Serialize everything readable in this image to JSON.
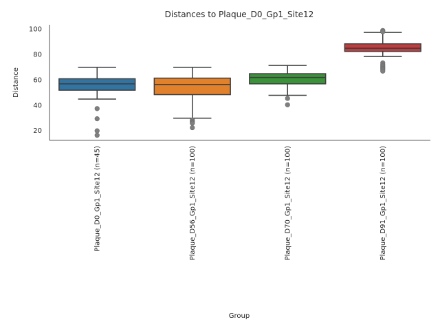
{
  "chart_data": {
    "type": "box",
    "title": "Distances to Plaque_D0_Gp1_Site12",
    "xlabel": "Group",
    "ylabel": "Distance",
    "ylim": [
      12,
      103
    ],
    "yticks": [
      20,
      40,
      60,
      80,
      100
    ],
    "grid": false,
    "categories": [
      "Plaque_D0_Gp1_Site12 (n=45)",
      "Plaque_D56_Gp1_Site12 (n=100)",
      "Plaque_D70_Gp1_Site12 (n=100)",
      "Plaque_D91_Gp1_Site12 (n=100)"
    ],
    "colors": [
      "#3274a1",
      "#e1812c",
      "#3a923a",
      "#c03d3e"
    ],
    "boxes": [
      {
        "whisker_low": 44.5,
        "q1": 51.5,
        "median": 56.5,
        "q3": 60.5,
        "whisker_high": 69.5,
        "outliers": [
          37,
          29,
          19.5,
          16
        ]
      },
      {
        "whisker_low": 29.5,
        "q1": 48,
        "median": 56,
        "q3": 61,
        "whisker_high": 69.5,
        "outliers": [
          28,
          27,
          26,
          25.5,
          22
        ]
      },
      {
        "whisker_low": 47.5,
        "q1": 56.5,
        "median": 61.5,
        "q3": 64.5,
        "whisker_high": 71,
        "outliers": [
          45,
          40
        ]
      },
      {
        "whisker_low": 78,
        "q1": 82,
        "median": 84.5,
        "q3": 88,
        "whisker_high": 97,
        "outliers": [
          98.5,
          97.5,
          73,
          71.5,
          70.5,
          69.5,
          68.5,
          67.5,
          66.5
        ]
      }
    ]
  }
}
